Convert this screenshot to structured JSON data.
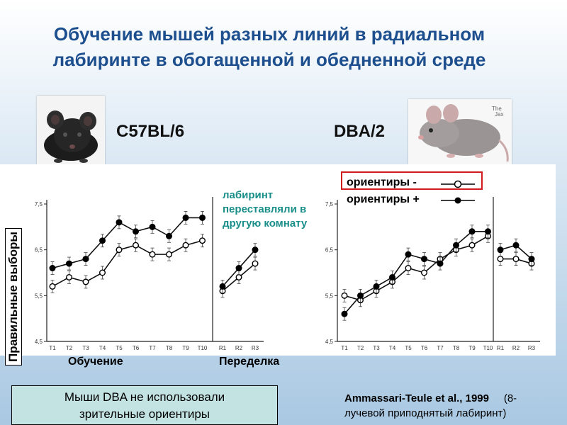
{
  "title_line1": "Обучение мышей разных линий в радиальном",
  "title_line2": "лабиринте в обогащенной и обедненной среде",
  "strain_left": "C57BL/6",
  "strain_right": "DBA/2",
  "ylabel": "Правильные выборы",
  "xlabel_training": "Обучение",
  "xlabel_relearning": "Переделка",
  "annotation": [
    "лабиринт",
    "переставляли в",
    "другую комнату"
  ],
  "legend": {
    "minus": "ориентиры -",
    "plus": "ориентиры +"
  },
  "note": [
    "Мыши DBA не использовали",
    "зрительные ориентиры"
  ],
  "citation": {
    "author": "Ammassari-Teule et al., 1999",
    "detail1": "(8-",
    "detail2": "лучевой приподнятый лабиринт)"
  },
  "colors": {
    "title": "#1d4f8f",
    "annotation": "#1a8f8a",
    "legend_border": "#d01c1c",
    "note_bg": "#c3e3e3"
  },
  "chart_data": [
    {
      "type": "line",
      "panel": "C57BL/6",
      "ylim": [
        4.5,
        7.5
      ],
      "yticks": [
        "4,5",
        "5,5",
        "6,5",
        "7,5"
      ],
      "training": {
        "categories": [
          "T1",
          "T2",
          "T3",
          "T4",
          "T5",
          "T6",
          "T7",
          "T8",
          "T9",
          "T10"
        ],
        "series": [
          {
            "name": "ориентиры -",
            "marker": "open",
            "values": [
              5.7,
              5.9,
              5.8,
              6.0,
              6.5,
              6.6,
              6.4,
              6.4,
              6.6,
              6.7
            ]
          },
          {
            "name": "ориентиры +",
            "marker": "filled",
            "values": [
              6.1,
              6.2,
              6.3,
              6.7,
              7.1,
              6.9,
              7.0,
              6.8,
              7.2,
              7.2
            ]
          }
        ]
      },
      "relearning": {
        "categories": [
          "R1",
          "R2",
          "R3"
        ],
        "series": [
          {
            "name": "ориентиры -",
            "marker": "open",
            "values": [
              5.6,
              5.9,
              6.2
            ]
          },
          {
            "name": "ориентиры +",
            "marker": "filled",
            "values": [
              5.7,
              6.1,
              6.5
            ]
          }
        ]
      }
    },
    {
      "type": "line",
      "panel": "DBA/2",
      "ylim": [
        4.5,
        7.5
      ],
      "yticks": [
        "4,5",
        "5,5",
        "6,5",
        "7,5"
      ],
      "training": {
        "categories": [
          "T1",
          "T2",
          "T3",
          "T4",
          "T5",
          "T6",
          "T7",
          "T8",
          "T9",
          "T10"
        ],
        "series": [
          {
            "name": "ориентиры -",
            "marker": "open",
            "values": [
              5.5,
              5.4,
              5.6,
              5.8,
              6.1,
              6.0,
              6.3,
              6.5,
              6.6,
              6.8
            ]
          },
          {
            "name": "ориентиры +",
            "marker": "filled",
            "values": [
              5.1,
              5.5,
              5.7,
              5.9,
              6.4,
              6.3,
              6.2,
              6.6,
              6.9,
              6.9
            ]
          }
        ]
      },
      "relearning": {
        "categories": [
          "R1",
          "R2",
          "R3"
        ],
        "series": [
          {
            "name": "ориентиры -",
            "marker": "open",
            "values": [
              6.3,
              6.3,
              6.2
            ]
          },
          {
            "name": "ориентиры +",
            "marker": "filled",
            "values": [
              6.5,
              6.6,
              6.3
            ]
          }
        ]
      }
    }
  ]
}
